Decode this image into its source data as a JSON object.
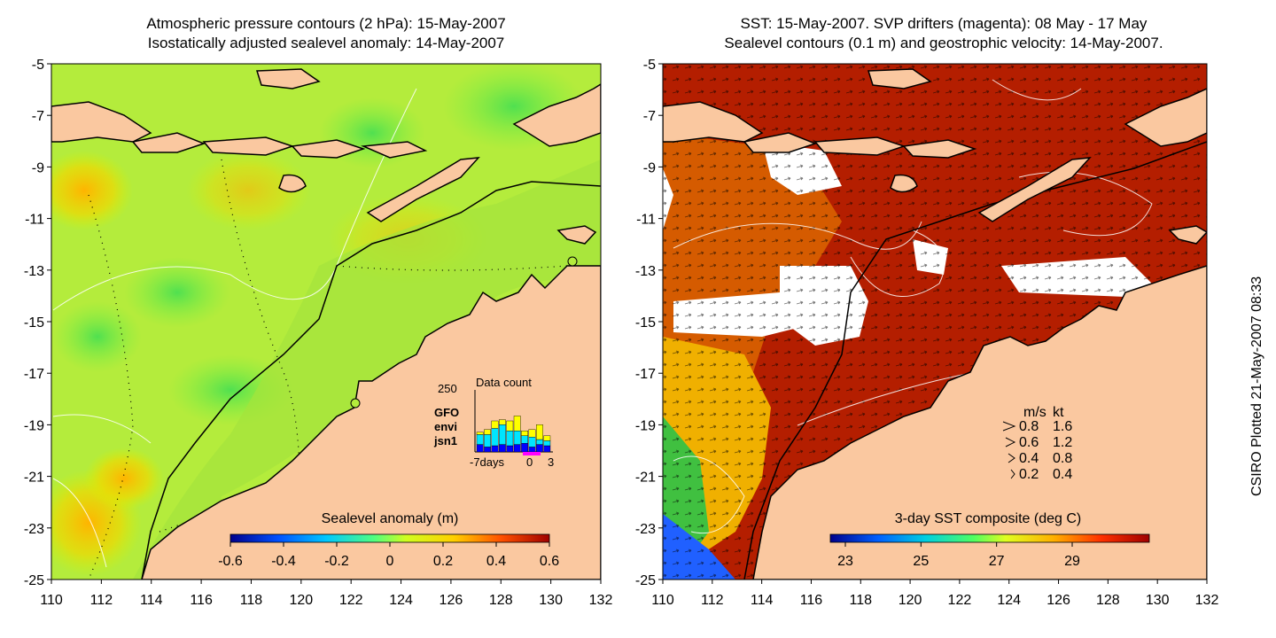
{
  "left_panel": {
    "title_line1": "Atmospheric pressure contours (2 hPa): 15-May-2007",
    "title_line2": "Isostatically adjusted sealevel anomaly: 14-May-2007",
    "colorbar": {
      "label": "Sealevel anomaly (m)",
      "ticks": [
        "-0.6",
        "-0.4",
        "-0.2",
        "0",
        "0.2",
        "0.4",
        "0.6"
      ]
    },
    "data_count_inset": {
      "title": "Data count",
      "ymax_label": "250",
      "x_labels": [
        "-7days",
        "0",
        "3"
      ],
      "legend": [
        {
          "label": "GFO",
          "color": "#ffff00"
        },
        {
          "label": "envi",
          "color": "#00e5ff"
        },
        {
          "label": "jsn1",
          "color": "#0000ff"
        }
      ],
      "bars": [
        {
          "jsn1": 30,
          "envi": 40,
          "gfo": 10
        },
        {
          "jsn1": 20,
          "envi": 50,
          "gfo": 20
        },
        {
          "jsn1": 25,
          "envi": 70,
          "gfo": 30
        },
        {
          "jsn1": 30,
          "envi": 80,
          "gfo": 20
        },
        {
          "jsn1": 25,
          "envi": 60,
          "gfo": 40
        },
        {
          "jsn1": 30,
          "envi": 55,
          "gfo": 60
        },
        {
          "jsn1": 35,
          "envi": 30,
          "gfo": 20
        },
        {
          "jsn1": 20,
          "envi": 40,
          "gfo": 30
        },
        {
          "jsn1": 30,
          "envi": 20,
          "gfo": 60
        },
        {
          "jsn1": 25,
          "envi": 20,
          "gfo": 20
        }
      ]
    }
  },
  "right_panel": {
    "title_line1": "SST: 15-May-2007. SVP drifters (magenta): 08 May - 17 May",
    "title_line2": "Sealevel contours (0.1 m) and geostrophic velocity: 14-May-2007.",
    "colorbar": {
      "label": "3-day SST composite (deg C)",
      "ticks": [
        "23",
        "25",
        "27",
        "29"
      ]
    },
    "velocity_legend": {
      "header_ms": "m/s",
      "header_kt": "kt",
      "rows": [
        {
          "ms": "0.8",
          "kt": "1.6"
        },
        {
          "ms": "0.6",
          "kt": "1.2"
        },
        {
          "ms": "0.4",
          "kt": "0.8"
        },
        {
          "ms": "0.2",
          "kt": "0.4"
        }
      ]
    }
  },
  "axes": {
    "y_ticks": [
      "-5",
      "-7",
      "-9",
      "-11",
      "-13",
      "-15",
      "-17",
      "-19",
      "-21",
      "-23",
      "-25"
    ],
    "x_ticks": [
      "110",
      "112",
      "114",
      "116",
      "118",
      "120",
      "122",
      "124",
      "126",
      "128",
      "130",
      "132"
    ]
  },
  "credit": "CSIRO Plotted 21-May-2007 08:33",
  "colors": {
    "land": "#fac8a0",
    "ocean_green": "#b4f03c",
    "sst_hot": "#b41e00",
    "sst_cloud": "#ffffff"
  }
}
